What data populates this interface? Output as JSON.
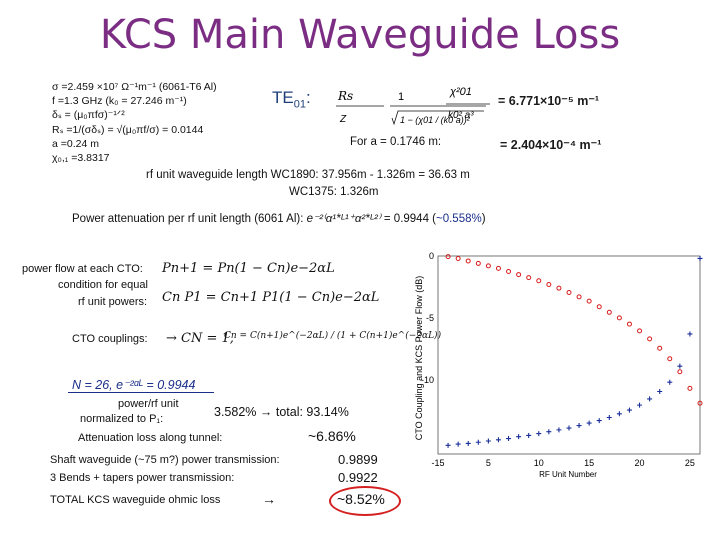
{
  "slide": {
    "title": "KCS Main Waveguide Loss",
    "params": [
      "σ =2.459 ×10⁷ Ω⁻¹m⁻¹ (6061-T6 Al)",
      "f =1.3 GHz (k₀ = 27.246 m⁻¹)",
      "δₛ = (μ₀πfσ)⁻¹ᐟ²",
      "Rₛ =1/(σδₛ) = √(μ₀πf/σ) = 0.0144",
      "a =0.24 m",
      "χ₀,₁ =3.8317"
    ],
    "te_label": "TE",
    "te_sub": "01",
    "te_colon": ":",
    "formula": {
      "rs": "Rs",
      "one": "1",
      "k0": "k0",
      "z": "Z",
      "chi01": "χ01",
      "a": "a",
      "chi_sq": "χ²01",
      "k0sq_a3": "k0² a³",
      "radicand": "1 − (χ01 / (k0 a))²"
    },
    "result1": "= 6.771×10⁻⁵ m⁻¹",
    "for_a_label": "For a = 0.1746 m:",
    "result2": "= 2.404×10⁻⁴ m⁻¹",
    "rf_line1": "rf unit waveguide length  WC1890:  37.956m - 1.326m = 36.63 m",
    "rf_line2": "WC1375:  1.326m",
    "power_atten_prefix": "Power attenuation per rf unit length (6061 Al):",
    "power_atten_expr": "e⁻²⁽α¹*ᴸ¹⁺α²*ᴸ²⁾",
    "power_atten_value": "= 0.9944 (",
    "power_atten_pct": "~0.558%",
    "power_atten_close": ")",
    "power_flow_label": "power flow at each CTO:",
    "eq_power_flow": "Pn+1 = Pn(1 − Cn)e−2αL",
    "cond_label_1": "condition for equal",
    "cond_label_2": "rf unit powers:",
    "eq_condition": "Cn P1 = Cn+1 P1(1 − Cn)e−2αL",
    "cto_label": "CTO couplings:",
    "eq_cto_1": "→ CN = 1,",
    "eq_cto_2": "Cn = C(n+1)e^(−2αL) / (1 + C(n+1)e^(−2αL))",
    "n_line": "N = 26,  e⁻²ᵅᴸ = 0.9944",
    "power_rf_1": "power/rf unit",
    "power_rf_2": "normalized to P₁:",
    "power_rf_vals": "3.582% → total: 93.14%",
    "atten_tunnel_label": "Attenuation loss along tunnel:",
    "atten_tunnel_val": "~6.86%",
    "shaft_label": "Shaft  waveguide (~75 m?) power transmission:",
    "shaft_val": "0.9899",
    "bends_label": "3 Bends + tapers power transmission:",
    "bends_val": "0.9922",
    "total_label": "TOTAL  KCS waveguide ohmic loss",
    "total_arrow": "→",
    "total_val": "~8.52%"
  },
  "colors": {
    "title": "#7b2d84",
    "red_markers": "#d81b1b",
    "blue_markers": "#1a2f9a",
    "accent_blue": "#1a2f8a",
    "circle": "#d42020"
  },
  "chart_data": {
    "type": "scatter",
    "xlabel": "RF Unit Number",
    "ylabel": "CTO Coupling and KCS Power Flow (dB)",
    "x_ticks": [
      "-15",
      "5",
      "10",
      "15",
      "20",
      "25"
    ],
    "y_ticks": [
      "0",
      "-5",
      "-10"
    ],
    "xlim": [
      0,
      26
    ],
    "ylim": [
      -16,
      0
    ],
    "series": [
      {
        "color": "red",
        "x": [
          1,
          2,
          3,
          4,
          5,
          6,
          7,
          8,
          9,
          10,
          11,
          12,
          13,
          14,
          15,
          16,
          17,
          18,
          19,
          20,
          21,
          22,
          23,
          24,
          25,
          26
        ],
        "y": [
          -0.05,
          -0.2,
          -0.4,
          -0.6,
          -0.8,
          -1.0,
          -1.25,
          -1.5,
          -1.75,
          -2.0,
          -2.3,
          -2.6,
          -2.95,
          -3.3,
          -3.65,
          -4.1,
          -4.55,
          -5.0,
          -5.5,
          -6.05,
          -6.7,
          -7.45,
          -8.3,
          -9.35,
          -10.7,
          -11.9
        ]
      },
      {
        "color": "blue",
        "x": [
          1,
          2,
          3,
          4,
          5,
          6,
          7,
          8,
          9,
          10,
          11,
          12,
          13,
          14,
          15,
          16,
          17,
          18,
          19,
          20,
          21,
          22,
          23,
          24,
          25,
          26
        ],
        "y": [
          -15.3,
          -15.2,
          -15.15,
          -15.05,
          -14.95,
          -14.85,
          -14.75,
          -14.6,
          -14.5,
          -14.35,
          -14.2,
          -14.05,
          -13.9,
          -13.7,
          -13.5,
          -13.3,
          -13.05,
          -12.75,
          -12.45,
          -12.05,
          -11.55,
          -10.95,
          -10.2,
          -8.9,
          -6.3,
          -0.2
        ]
      }
    ]
  }
}
